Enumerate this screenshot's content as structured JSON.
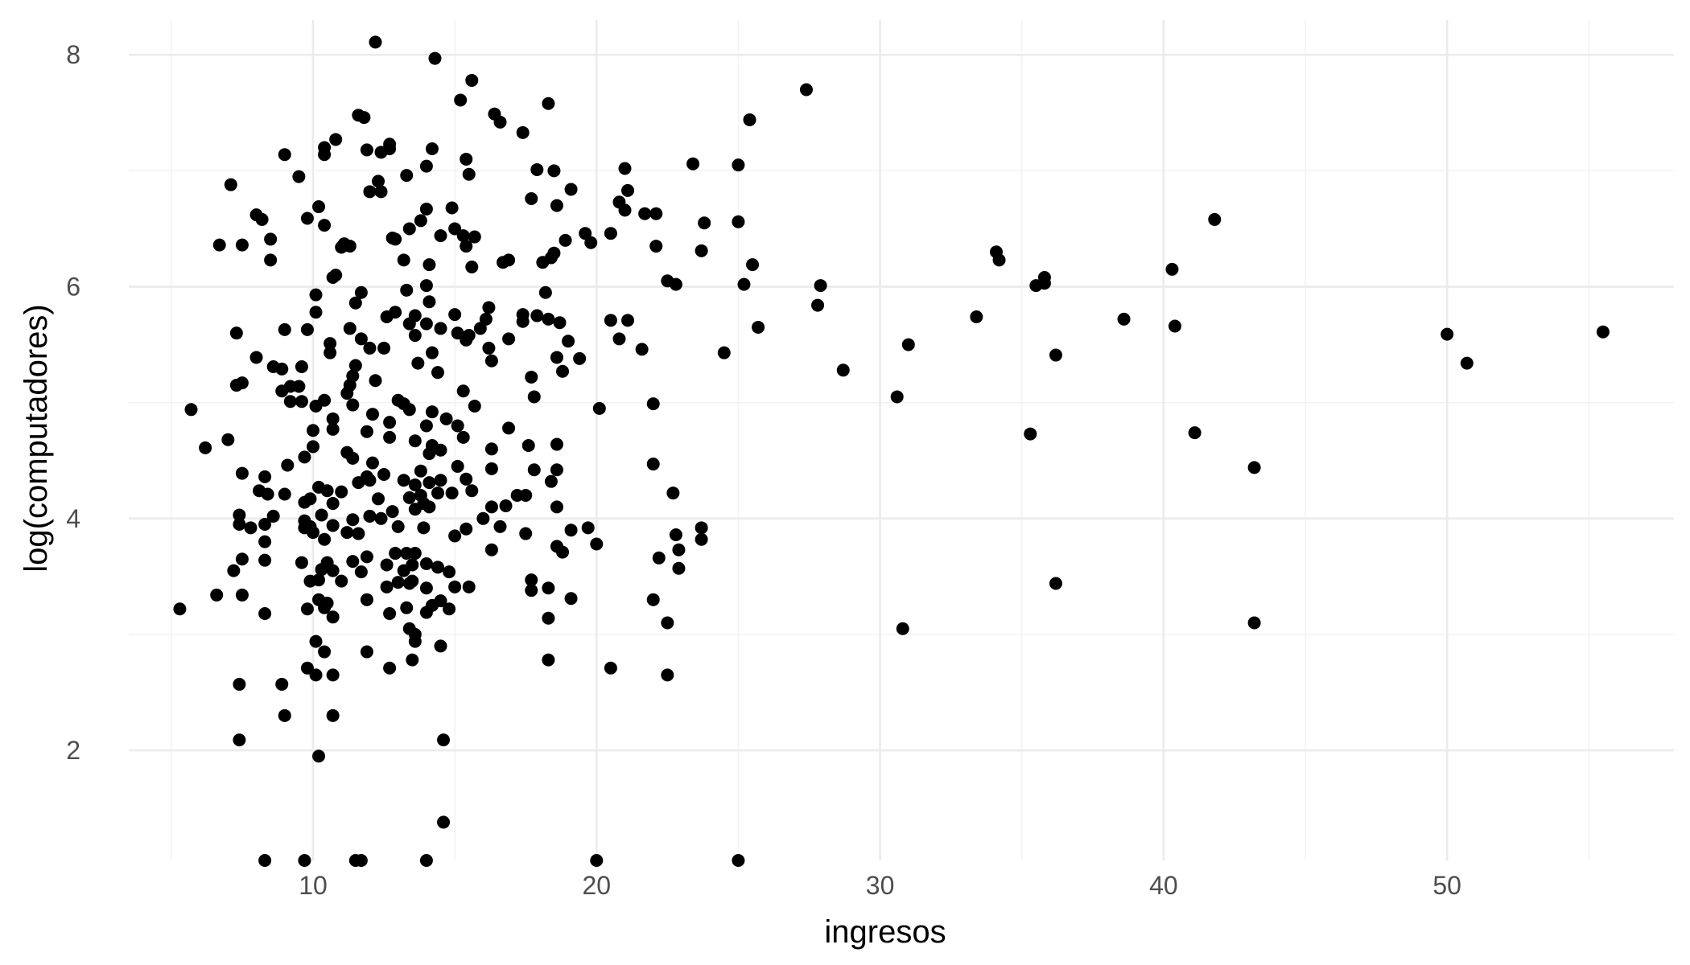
{
  "chart_data": {
    "type": "scatter",
    "title": "",
    "xlabel": "ingresos",
    "ylabel": "log(computadores)",
    "xlim": [
      3.5,
      58
    ],
    "ylim": [
      1.05,
      8.3
    ],
    "x_ticks": [
      10,
      20,
      30,
      40,
      50
    ],
    "y_ticks": [
      2,
      4,
      6,
      8
    ],
    "x_tick_labels": [
      "10",
      "20",
      "30",
      "40",
      "50"
    ],
    "y_tick_labels": [
      "2",
      "4",
      "6",
      "8"
    ],
    "grid": true,
    "point_color": "#000000",
    "points": [
      [
        5.3,
        3.22
      ],
      [
        5.7,
        4.94
      ],
      [
        6.2,
        4.61
      ],
      [
        6.6,
        3.34
      ],
      [
        6.7,
        6.36
      ],
      [
        7.0,
        4.68
      ],
      [
        7.1,
        6.88
      ],
      [
        7.2,
        3.55
      ],
      [
        7.3,
        5.6
      ],
      [
        7.3,
        5.15
      ],
      [
        7.4,
        4.03
      ],
      [
        7.4,
        3.95
      ],
      [
        7.4,
        2.57
      ],
      [
        7.4,
        2.09
      ],
      [
        7.5,
        5.17
      ],
      [
        7.5,
        3.65
      ],
      [
        7.5,
        3.34
      ],
      [
        7.5,
        4.39
      ],
      [
        7.5,
        6.36
      ],
      [
        7.8,
        3.92
      ],
      [
        8.0,
        6.62
      ],
      [
        8.0,
        5.39
      ],
      [
        8.1,
        4.24
      ],
      [
        8.2,
        6.58
      ],
      [
        8.3,
        4.36
      ],
      [
        8.3,
        3.95
      ],
      [
        8.3,
        3.8
      ],
      [
        8.3,
        3.64
      ],
      [
        8.3,
        3.18
      ],
      [
        8.4,
        4.21
      ],
      [
        8.5,
        6.41
      ],
      [
        8.5,
        6.23
      ],
      [
        8.6,
        5.31
      ],
      [
        8.6,
        4.02
      ],
      [
        8.9,
        5.29
      ],
      [
        8.9,
        2.57
      ],
      [
        8.9,
        5.1
      ],
      [
        9.0,
        7.14
      ],
      [
        9.0,
        4.21
      ],
      [
        9.0,
        5.63
      ],
      [
        9.0,
        2.3
      ],
      [
        9.1,
        4.46
      ],
      [
        9.2,
        5.14
      ],
      [
        9.2,
        5.01
      ],
      [
        9.5,
        5.14
      ],
      [
        9.5,
        6.95
      ],
      [
        9.6,
        5.01
      ],
      [
        9.6,
        3.62
      ],
      [
        9.6,
        5.31
      ],
      [
        9.7,
        4.14
      ],
      [
        9.7,
        3.98
      ],
      [
        9.7,
        3.92
      ],
      [
        9.7,
        4.53
      ],
      [
        9.8,
        6.59
      ],
      [
        9.8,
        5.63
      ],
      [
        9.8,
        3.22
      ],
      [
        9.8,
        2.71
      ],
      [
        9.9,
        3.93
      ],
      [
        9.9,
        3.46
      ],
      [
        9.9,
        4.17
      ],
      [
        10.0,
        3.88
      ],
      [
        10.0,
        4.76
      ],
      [
        10.0,
        4.62
      ],
      [
        10.1,
        5.93
      ],
      [
        10.1,
        5.78
      ],
      [
        10.1,
        4.97
      ],
      [
        10.1,
        2.94
      ],
      [
        10.1,
        2.65
      ],
      [
        10.2,
        4.27
      ],
      [
        10.2,
        3.47
      ],
      [
        10.2,
        3.3
      ],
      [
        10.2,
        1.95
      ],
      [
        10.2,
        6.69
      ],
      [
        10.3,
        3.56
      ],
      [
        10.3,
        4.03
      ],
      [
        10.4,
        7.2
      ],
      [
        10.4,
        7.14
      ],
      [
        10.4,
        6.53
      ],
      [
        10.4,
        5.02
      ],
      [
        10.4,
        3.82
      ],
      [
        10.4,
        3.23
      ],
      [
        10.4,
        2.85
      ],
      [
        10.5,
        4.24
      ],
      [
        10.5,
        3.62
      ],
      [
        10.5,
        3.27
      ],
      [
        10.6,
        5.51
      ],
      [
        10.6,
        5.43
      ],
      [
        10.7,
        4.86
      ],
      [
        10.7,
        4.77
      ],
      [
        10.7,
        4.13
      ],
      [
        10.7,
        3.94
      ],
      [
        10.7,
        3.55
      ],
      [
        10.7,
        3.15
      ],
      [
        10.7,
        2.65
      ],
      [
        10.7,
        2.3
      ],
      [
        10.7,
        6.08
      ],
      [
        10.8,
        7.27
      ],
      [
        10.8,
        6.1
      ],
      [
        11.0,
        6.34
      ],
      [
        11.0,
        4.23
      ],
      [
        11.0,
        3.46
      ],
      [
        11.1,
        6.37
      ],
      [
        11.2,
        5.08
      ],
      [
        11.2,
        4.57
      ],
      [
        11.2,
        3.88
      ],
      [
        11.3,
        6.35
      ],
      [
        11.3,
        5.64
      ],
      [
        11.3,
        5.15
      ],
      [
        11.4,
        5.23
      ],
      [
        11.4,
        4.98
      ],
      [
        11.4,
        4.52
      ],
      [
        11.4,
        3.99
      ],
      [
        11.4,
        3.63
      ],
      [
        11.5,
        5.32
      ],
      [
        11.5,
        5.86
      ],
      [
        11.6,
        7.48
      ],
      [
        11.6,
        4.31
      ],
      [
        11.6,
        3.87
      ],
      [
        11.7,
        5.95
      ],
      [
        11.7,
        5.55
      ],
      [
        11.7,
        3.54
      ],
      [
        11.8,
        7.46
      ],
      [
        11.9,
        7.18
      ],
      [
        11.9,
        4.75
      ],
      [
        11.9,
        4.36
      ],
      [
        11.9,
        3.67
      ],
      [
        11.9,
        3.3
      ],
      [
        11.9,
        2.85
      ],
      [
        12.0,
        6.82
      ],
      [
        12.0,
        5.47
      ],
      [
        12.0,
        4.33
      ],
      [
        12.0,
        4.02
      ],
      [
        12.1,
        4.9
      ],
      [
        12.1,
        4.48
      ],
      [
        12.2,
        8.11
      ],
      [
        12.2,
        5.19
      ],
      [
        12.3,
        6.91
      ],
      [
        12.3,
        4.17
      ],
      [
        12.4,
        6.82
      ],
      [
        12.4,
        7.16
      ],
      [
        12.4,
        4.0
      ],
      [
        12.5,
        5.47
      ],
      [
        12.5,
        4.38
      ],
      [
        12.6,
        5.74
      ],
      [
        12.6,
        3.6
      ],
      [
        12.6,
        3.41
      ],
      [
        12.7,
        7.23
      ],
      [
        12.7,
        7.19
      ],
      [
        12.7,
        4.83
      ],
      [
        12.7,
        4.7
      ],
      [
        12.7,
        3.18
      ],
      [
        12.7,
        2.71
      ],
      [
        12.8,
        6.42
      ],
      [
        12.8,
        4.06
      ],
      [
        12.9,
        6.41
      ],
      [
        12.9,
        5.78
      ],
      [
        12.9,
        3.7
      ],
      [
        13.0,
        5.02
      ],
      [
        13.0,
        3.93
      ],
      [
        13.0,
        3.45
      ],
      [
        13.2,
        6.23
      ],
      [
        13.2,
        4.99
      ],
      [
        13.2,
        4.33
      ],
      [
        13.2,
        3.55
      ],
      [
        13.3,
        6.96
      ],
      [
        13.3,
        5.97
      ],
      [
        13.3,
        3.7
      ],
      [
        13.3,
        3.23
      ],
      [
        13.4,
        6.5
      ],
      [
        13.4,
        5.68
      ],
      [
        13.4,
        4.94
      ],
      [
        13.4,
        4.18
      ],
      [
        13.4,
        3.44
      ],
      [
        13.4,
        3.05
      ],
      [
        13.5,
        3.6
      ],
      [
        13.5,
        3.46
      ],
      [
        13.5,
        2.78
      ],
      [
        13.6,
        5.75
      ],
      [
        13.6,
        5.58
      ],
      [
        13.6,
        4.67
      ],
      [
        13.6,
        4.29
      ],
      [
        13.6,
        4.08
      ],
      [
        13.6,
        3.7
      ],
      [
        13.6,
        3.0
      ],
      [
        13.6,
        2.94
      ],
      [
        13.7,
        5.34
      ],
      [
        13.8,
        6.57
      ],
      [
        13.8,
        4.41
      ],
      [
        13.8,
        4.2
      ],
      [
        13.9,
        4.13
      ],
      [
        13.9,
        3.92
      ],
      [
        14.0,
        7.04
      ],
      [
        14.0,
        6.67
      ],
      [
        14.0,
        6.01
      ],
      [
        14.0,
        5.68
      ],
      [
        14.0,
        4.8
      ],
      [
        14.0,
        3.61
      ],
      [
        14.0,
        3.4
      ],
      [
        14.0,
        3.19
      ],
      [
        14.1,
        6.19
      ],
      [
        14.1,
        5.87
      ],
      [
        14.1,
        4.56
      ],
      [
        14.1,
        4.31
      ],
      [
        14.1,
        4.1
      ],
      [
        14.2,
        7.19
      ],
      [
        14.2,
        5.43
      ],
      [
        14.2,
        4.92
      ],
      [
        14.2,
        4.63
      ],
      [
        14.2,
        3.25
      ],
      [
        14.3,
        7.97
      ],
      [
        14.4,
        5.26
      ],
      [
        14.4,
        4.22
      ],
      [
        14.4,
        3.58
      ],
      [
        14.5,
        6.44
      ],
      [
        14.5,
        5.64
      ],
      [
        14.5,
        4.59
      ],
      [
        14.5,
        4.33
      ],
      [
        14.5,
        3.29
      ],
      [
        14.5,
        2.9
      ],
      [
        14.6,
        2.09
      ],
      [
        14.6,
        1.38
      ],
      [
        14.7,
        4.86
      ],
      [
        14.8,
        3.54
      ],
      [
        14.8,
        3.22
      ],
      [
        14.9,
        6.68
      ],
      [
        14.9,
        4.22
      ],
      [
        15.0,
        6.5
      ],
      [
        15.0,
        5.76
      ],
      [
        15.0,
        3.85
      ],
      [
        15.0,
        3.41
      ],
      [
        15.1,
        5.6
      ],
      [
        15.1,
        4.8
      ],
      [
        15.1,
        4.45
      ],
      [
        15.2,
        7.61
      ],
      [
        15.3,
        6.44
      ],
      [
        15.3,
        5.1
      ],
      [
        15.3,
        4.7
      ],
      [
        15.4,
        7.1
      ],
      [
        15.4,
        6.35
      ],
      [
        15.4,
        5.54
      ],
      [
        15.4,
        4.34
      ],
      [
        15.4,
        3.91
      ],
      [
        15.5,
        6.97
      ],
      [
        15.5,
        5.58
      ],
      [
        15.5,
        3.41
      ],
      [
        15.6,
        7.78
      ],
      [
        15.6,
        6.17
      ],
      [
        15.6,
        4.24
      ],
      [
        15.7,
        6.43
      ],
      [
        15.7,
        4.97
      ],
      [
        15.9,
        5.64
      ],
      [
        16.0,
        4.0
      ],
      [
        16.1,
        5.72
      ],
      [
        16.2,
        5.82
      ],
      [
        16.2,
        5.47
      ],
      [
        16.3,
        5.36
      ],
      [
        16.3,
        4.6
      ],
      [
        16.3,
        4.43
      ],
      [
        16.3,
        4.1
      ],
      [
        16.3,
        3.73
      ],
      [
        16.4,
        7.49
      ],
      [
        16.6,
        3.93
      ],
      [
        16.6,
        7.42
      ],
      [
        16.7,
        6.21
      ],
      [
        16.8,
        4.11
      ],
      [
        16.9,
        6.23
      ],
      [
        16.9,
        5.55
      ],
      [
        16.9,
        4.78
      ],
      [
        17.2,
        4.2
      ],
      [
        17.4,
        7.33
      ],
      [
        17.4,
        5.76
      ],
      [
        17.4,
        5.7
      ],
      [
        17.5,
        4.2
      ],
      [
        17.5,
        3.87
      ],
      [
        17.6,
        4.63
      ],
      [
        17.7,
        6.76
      ],
      [
        17.7,
        5.22
      ],
      [
        17.7,
        3.47
      ],
      [
        17.7,
        3.38
      ],
      [
        17.8,
        5.05
      ],
      [
        17.8,
        4.42
      ],
      [
        17.9,
        7.01
      ],
      [
        17.9,
        5.75
      ],
      [
        18.1,
        6.21
      ],
      [
        18.2,
        5.95
      ],
      [
        18.3,
        7.58
      ],
      [
        18.3,
        5.72
      ],
      [
        18.3,
        3.4
      ],
      [
        18.3,
        3.14
      ],
      [
        18.3,
        2.78
      ],
      [
        18.4,
        6.25
      ],
      [
        18.4,
        4.32
      ],
      [
        18.5,
        7.0
      ],
      [
        18.5,
        6.29
      ],
      [
        18.6,
        6.7
      ],
      [
        18.6,
        5.39
      ],
      [
        18.6,
        4.64
      ],
      [
        18.6,
        4.42
      ],
      [
        18.6,
        4.1
      ],
      [
        18.6,
        3.76
      ],
      [
        18.7,
        5.69
      ],
      [
        18.8,
        5.27
      ],
      [
        18.8,
        3.71
      ],
      [
        18.9,
        6.4
      ],
      [
        19.0,
        5.53
      ],
      [
        19.1,
        6.84
      ],
      [
        19.1,
        3.9
      ],
      [
        19.1,
        3.31
      ],
      [
        19.4,
        5.38
      ],
      [
        19.6,
        6.46
      ],
      [
        19.7,
        3.92
      ],
      [
        19.8,
        6.38
      ],
      [
        20.0,
        3.78
      ],
      [
        20.1,
        4.95
      ],
      [
        20.5,
        6.46
      ],
      [
        20.5,
        5.71
      ],
      [
        20.5,
        2.71
      ],
      [
        20.8,
        6.73
      ],
      [
        20.8,
        5.55
      ],
      [
        21.0,
        7.02
      ],
      [
        21.0,
        6.66
      ],
      [
        21.1,
        6.83
      ],
      [
        21.1,
        5.71
      ],
      [
        21.6,
        5.46
      ],
      [
        21.7,
        6.63
      ],
      [
        22.0,
        4.99
      ],
      [
        22.0,
        4.47
      ],
      [
        22.0,
        3.3
      ],
      [
        22.1,
        6.63
      ],
      [
        22.1,
        6.35
      ],
      [
        22.2,
        3.66
      ],
      [
        22.5,
        6.05
      ],
      [
        22.5,
        3.1
      ],
      [
        22.5,
        2.65
      ],
      [
        22.7,
        4.22
      ],
      [
        22.8,
        6.02
      ],
      [
        22.8,
        3.86
      ],
      [
        22.9,
        3.73
      ],
      [
        22.9,
        3.57
      ],
      [
        23.4,
        7.06
      ],
      [
        23.7,
        6.31
      ],
      [
        23.7,
        3.92
      ],
      [
        23.7,
        3.82
      ],
      [
        23.8,
        6.55
      ],
      [
        24.5,
        5.43
      ],
      [
        25.0,
        7.05
      ],
      [
        25.0,
        6.56
      ],
      [
        25.2,
        6.02
      ],
      [
        25.4,
        7.44
      ],
      [
        25.5,
        6.19
      ],
      [
        25.7,
        5.65
      ],
      [
        27.4,
        7.7
      ],
      [
        27.8,
        5.84
      ],
      [
        27.9,
        6.01
      ],
      [
        28.7,
        5.28
      ],
      [
        30.6,
        5.05
      ],
      [
        30.8,
        3.05
      ],
      [
        31.0,
        5.5
      ],
      [
        33.4,
        5.74
      ],
      [
        34.1,
        6.3
      ],
      [
        34.2,
        6.23
      ],
      [
        35.3,
        4.73
      ],
      [
        35.5,
        6.01
      ],
      [
        35.8,
        6.08
      ],
      [
        35.8,
        6.03
      ],
      [
        36.2,
        5.41
      ],
      [
        36.2,
        3.44
      ],
      [
        38.6,
        5.72
      ],
      [
        40.3,
        6.15
      ],
      [
        40.4,
        5.66
      ],
      [
        41.1,
        4.74
      ],
      [
        41.8,
        6.58
      ],
      [
        43.2,
        4.44
      ],
      [
        43.2,
        3.1
      ],
      [
        50.0,
        5.59
      ],
      [
        50.7,
        5.34
      ],
      [
        55.5,
        5.61
      ],
      [
        8.3,
        1.05
      ],
      [
        9.7,
        1.05
      ],
      [
        11.5,
        1.05
      ],
      [
        11.7,
        1.05
      ],
      [
        14.0,
        1.05
      ],
      [
        20.0,
        1.05
      ],
      [
        25.0,
        1.05
      ]
    ]
  }
}
